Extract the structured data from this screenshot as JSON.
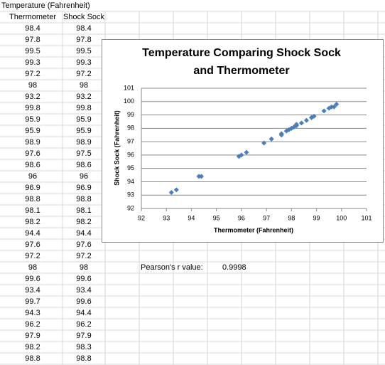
{
  "sheet": {
    "title": "Temperature (Fahrenheit)",
    "headers": [
      "Thermometer",
      "Shock Sock"
    ],
    "rows": [
      [
        "98.4",
        "98.4"
      ],
      [
        "97.8",
        "97.8"
      ],
      [
        "99.5",
        "99.5"
      ],
      [
        "99.3",
        "99.3"
      ],
      [
        "97.2",
        "97.2"
      ],
      [
        "98",
        "98"
      ],
      [
        "93.2",
        "93.2"
      ],
      [
        "99.8",
        "99.8"
      ],
      [
        "95.9",
        "95.9"
      ],
      [
        "95.9",
        "95.9"
      ],
      [
        "98.9",
        "98.9"
      ],
      [
        "97.6",
        "97.5"
      ],
      [
        "98.6",
        "98.6"
      ],
      [
        "96",
        "96"
      ],
      [
        "96.9",
        "96.9"
      ],
      [
        "98.8",
        "98.8"
      ],
      [
        "98.1",
        "98.1"
      ],
      [
        "98.2",
        "98.2"
      ],
      [
        "94.4",
        "94.4"
      ],
      [
        "97.6",
        "97.6"
      ],
      [
        "97.2",
        "97.2"
      ],
      [
        "98",
        "98"
      ],
      [
        "99.6",
        "99.6"
      ],
      [
        "93.4",
        "93.4"
      ],
      [
        "99.7",
        "99.6"
      ],
      [
        "94.3",
        "94.4"
      ],
      [
        "96.2",
        "96.2"
      ],
      [
        "97.9",
        "97.9"
      ],
      [
        "98.2",
        "98.3"
      ],
      [
        "98.8",
        "98.8"
      ]
    ],
    "pearson_label": "Pearson's r value:",
    "pearson_value": "0.9998"
  },
  "chart_data": {
    "type": "scatter",
    "title": [
      "Temperature Comparing Shock Sock",
      "and Thermometer"
    ],
    "x_label": "Thermometer (Fahrenheit)",
    "y_label": "Shock Sock (Fahrenheit)",
    "x": [
      98.4,
      97.8,
      99.5,
      99.3,
      97.2,
      98,
      93.2,
      99.8,
      95.9,
      95.9,
      98.9,
      97.6,
      98.6,
      96,
      96.9,
      98.8,
      98.1,
      98.2,
      94.4,
      97.6,
      97.2,
      98,
      99.6,
      93.4,
      99.7,
      94.3,
      96.2,
      97.9,
      98.2,
      98.8
    ],
    "series": [
      {
        "color": "#4a7ebb",
        "values": [
          98.4,
          97.8,
          99.5,
          99.3,
          97.2,
          98,
          93.2,
          99.8,
          95.9,
          95.9,
          98.9,
          97.5,
          98.6,
          96,
          96.9,
          98.8,
          98.1,
          98.2,
          94.4,
          97.6,
          97.2,
          98,
          99.6,
          93.4,
          99.6,
          94.4,
          96.2,
          97.9,
          98.3,
          98.8
        ]
      }
    ],
    "xlim": [
      92,
      101
    ],
    "ylim": [
      92,
      101
    ],
    "xticks": [
      92,
      93,
      94,
      95,
      96,
      97,
      98,
      99,
      100,
      101
    ],
    "yticks": [
      92,
      93,
      94,
      95,
      96,
      97,
      98,
      99,
      100,
      101
    ],
    "grid": true
  }
}
